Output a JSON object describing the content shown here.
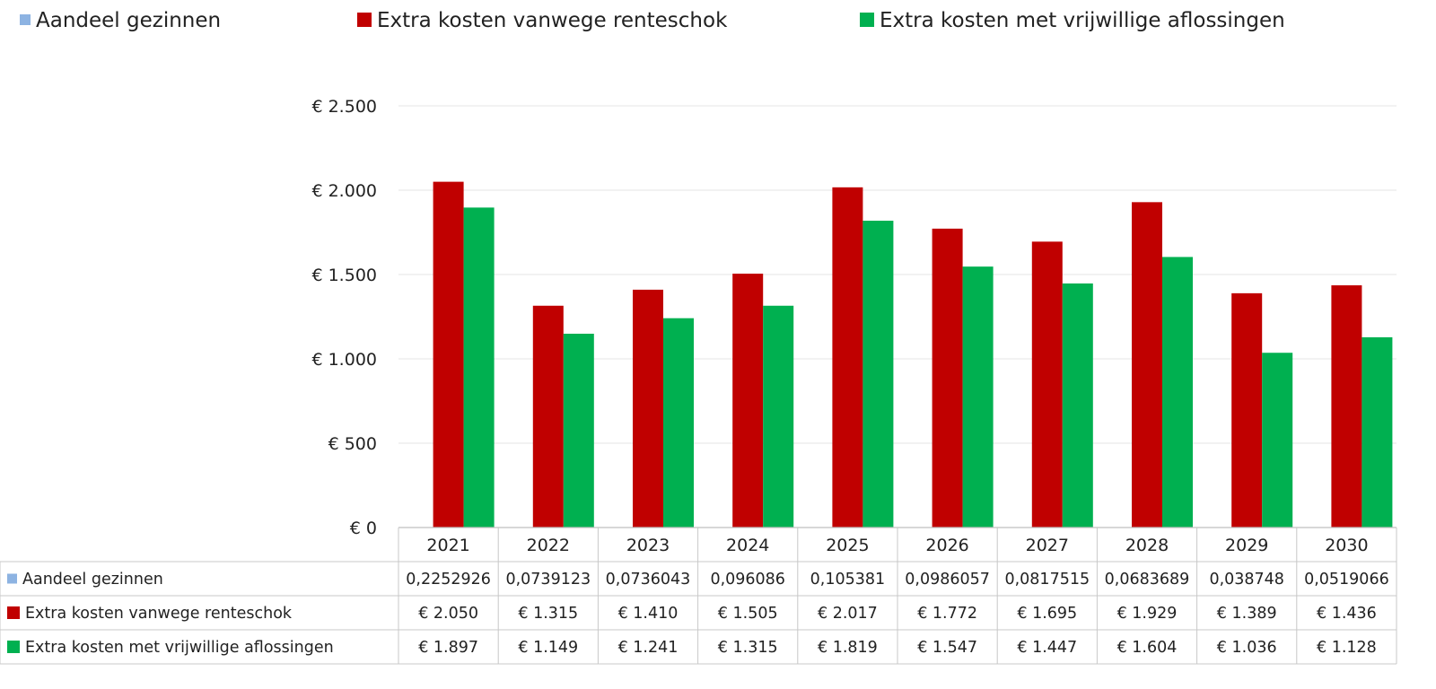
{
  "chart_data": {
    "type": "bar",
    "categories": [
      "2021",
      "2022",
      "2023",
      "2024",
      "2025",
      "2026",
      "2027",
      "2028",
      "2029",
      "2030"
    ],
    "series": [
      {
        "name": "Aandeel gezinnen",
        "color": "#8db3e2",
        "values": [
          0.2252926,
          0.0739123,
          0.0736043,
          0.096086,
          0.105381,
          0.0986057,
          0.0817515,
          0.0683689,
          0.038748,
          0.0519066
        ],
        "table_values": [
          "0,2252926",
          "0,0739123",
          "0,0736043",
          "0,096086",
          "0,105381",
          "0,0986057",
          "0,0817515",
          "0,0683689",
          "0,038748",
          "0,0519066"
        ]
      },
      {
        "name": "Extra kosten vanwege renteschok",
        "color": "#c00000",
        "values": [
          2050,
          1315,
          1410,
          1505,
          2017,
          1772,
          1695,
          1929,
          1389,
          1436
        ],
        "table_values": [
          "€ 2.050",
          "€ 1.315",
          "€ 1.410",
          "€ 1.505",
          "€ 2.017",
          "€ 1.772",
          "€ 1.695",
          "€ 1.929",
          "€ 1.389",
          "€ 1.436"
        ]
      },
      {
        "name": "Extra kosten met vrijwillige aflossingen",
        "color": "#00b050",
        "values": [
          1897,
          1149,
          1241,
          1315,
          1819,
          1547,
          1447,
          1604,
          1036,
          1128
        ],
        "table_values": [
          "€ 1.897",
          "€ 1.149",
          "€ 1.241",
          "€ 1.315",
          "€ 1.819",
          "€ 1.547",
          "€ 1.447",
          "€ 1.604",
          "€ 1.036",
          "€ 1.128"
        ]
      }
    ],
    "ylim": [
      0,
      2500
    ],
    "yticks": [
      0,
      500,
      1000,
      1500,
      2000,
      2500
    ],
    "ytick_labels": [
      "€ 0",
      "€ 500",
      "€ 1.000",
      "€ 1.500",
      "€ 2.000",
      "€ 2.500"
    ],
    "grid": true,
    "legend": "top",
    "data_table": true
  }
}
